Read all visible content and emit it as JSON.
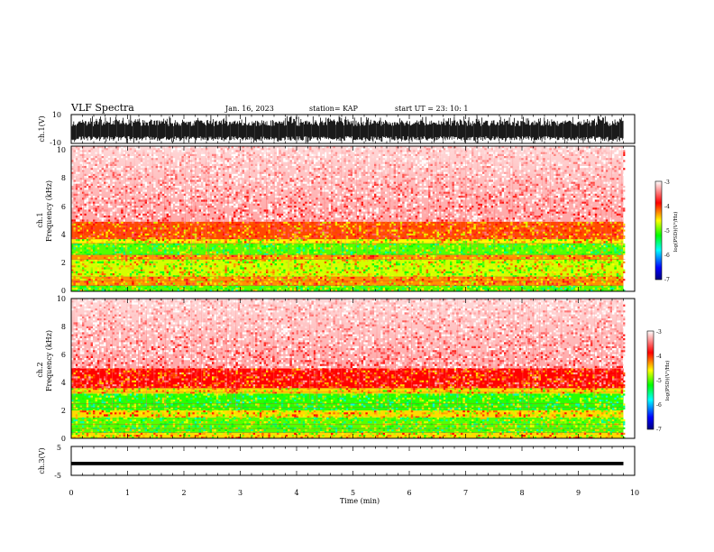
{
  "header": {
    "title": "VLF Spectra",
    "date": "Jan. 16, 2023",
    "station": "station= KAP",
    "start": "start UT =  23: 10: 1"
  },
  "chart_data": [
    {
      "id": "ch1_waveform",
      "type": "line",
      "ylabel": "ch.1(V)",
      "ylim": [
        -10,
        10
      ],
      "yticks": [
        10,
        -10
      ],
      "xlim": [
        0,
        10
      ],
      "data_xlim": [
        0,
        9.8
      ],
      "envelope": {
        "upper": [
          9.5,
          10
        ],
        "lower": [
          -9.5,
          -10
        ],
        "typical_min": -8,
        "typical_max": 6
      }
    },
    {
      "id": "ch1_spectrogram",
      "type": "heatmap",
      "ylabel_top": "ch.1",
      "ylabel": "Frequency (kHz)",
      "ylim": [
        0,
        10
      ],
      "yticks": [
        "0",
        "2",
        "4",
        "6",
        "8",
        "10"
      ],
      "xlim": [
        0,
        10
      ],
      "data_xlim": [
        0,
        9.8
      ],
      "bands": [
        {
          "from": 0.0,
          "to": 0.4,
          "level": -5.0
        },
        {
          "from": 0.4,
          "to": 1.0,
          "level": -4.3
        },
        {
          "from": 1.0,
          "to": 2.2,
          "level": -4.7
        },
        {
          "from": 2.2,
          "to": 2.5,
          "level": -4.3
        },
        {
          "from": 2.5,
          "to": 3.3,
          "level": -5.0
        },
        {
          "from": 3.3,
          "to": 3.6,
          "level": -4.6
        },
        {
          "from": 3.6,
          "to": 4.8,
          "level": -4.1
        },
        {
          "from": 4.8,
          "to": 10.0,
          "level": -3.3
        }
      ],
      "colorbar": {
        "label": "log(PSD)(V²/Hz)",
        "range": [
          -7,
          -3
        ],
        "ticks": [
          "-3",
          "-4",
          "-5",
          "-6",
          "-7"
        ]
      }
    },
    {
      "id": "ch2_spectrogram",
      "type": "heatmap",
      "ylabel_top": "ch.2",
      "ylabel": "Frequency (kHz)",
      "ylim": [
        0,
        10
      ],
      "yticks": [
        "0",
        "2",
        "4",
        "6",
        "8",
        "10"
      ],
      "xlim": [
        0,
        10
      ],
      "data_xlim": [
        0,
        9.8
      ],
      "bands": [
        {
          "from": 0.0,
          "to": 0.4,
          "level": -4.5
        },
        {
          "from": 0.4,
          "to": 1.5,
          "level": -5.0
        },
        {
          "from": 1.5,
          "to": 2.0,
          "level": -4.5
        },
        {
          "from": 2.0,
          "to": 3.2,
          "level": -5.1
        },
        {
          "from": 3.2,
          "to": 3.6,
          "level": -4.5
        },
        {
          "from": 3.6,
          "to": 5.0,
          "level": -3.9
        },
        {
          "from": 5.0,
          "to": 10.0,
          "level": -3.3
        }
      ],
      "colorbar": {
        "label": "log(PSD)(V²/Hz)",
        "range": [
          -7,
          -3
        ],
        "ticks": [
          "-3",
          "-4",
          "-5",
          "-6",
          "-7"
        ]
      }
    },
    {
      "id": "ch3_waveform",
      "type": "line",
      "ylabel": "ch.3(V)",
      "ylim": [
        -5,
        5
      ],
      "yticks": [
        "5",
        "-5"
      ],
      "xlim": [
        0,
        10
      ],
      "data_xlim": [
        0,
        9.8
      ],
      "band": [
        -1.5,
        -0.3
      ]
    }
  ],
  "xaxis": {
    "label": "Time (min)",
    "ticks": [
      "0",
      "1",
      "2",
      "3",
      "4",
      "5",
      "6",
      "7",
      "8",
      "9",
      "10"
    ]
  },
  "colors": {
    "colormap": [
      "#00008b",
      "#0000ff",
      "#00ffff",
      "#00ff00",
      "#ffff00",
      "#ff0000",
      "#ffffff"
    ],
    "line": "#000000"
  }
}
